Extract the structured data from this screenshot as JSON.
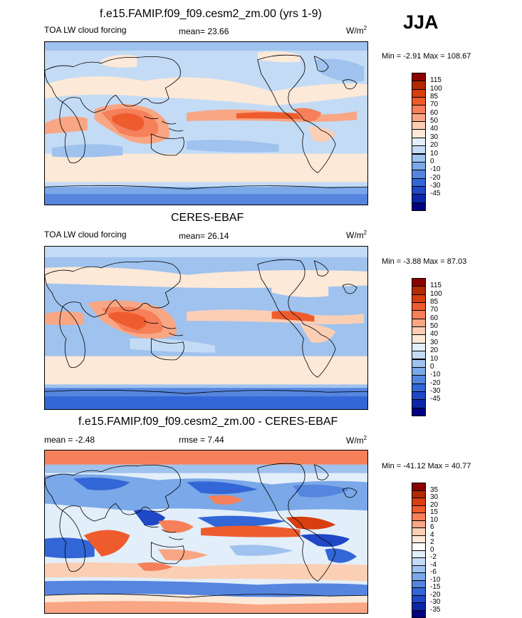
{
  "season": "JJA",
  "panels": [
    {
      "title": "f.e15.FAMIP.f09_f09.cesm2_zm.00 (yrs 1-9)",
      "left_label": "TOA LW cloud forcing",
      "center_label": "mean=  23.66",
      "units": "W/m",
      "units_sup": "2",
      "minmax": "Min =  -2.91 Max = 108.67",
      "colorbar": {
        "colors": [
          "#8b0000",
          "#b22a00",
          "#d73e10",
          "#ee5c2e",
          "#f5805a",
          "#f8a684",
          "#fbcfb4",
          "#fde9d8",
          "#e2eefa",
          "#c4dbf5",
          "#9fc2ee",
          "#7aa8e8",
          "#5585de",
          "#3366d6",
          "#1f47c6",
          "#0b27a8",
          "#000080"
        ],
        "ticks": [
          "115",
          "100",
          "85",
          "70",
          "60",
          "50",
          "40",
          "30",
          "20",
          "10",
          "0",
          "-10",
          "-20",
          "-30",
          "-45"
        ]
      }
    },
    {
      "title": "CERES-EBAF",
      "left_label": "TOA LW cloud forcing",
      "center_label": "mean=  26.14",
      "units": "W/m",
      "units_sup": "2",
      "minmax": "Min =  -3.88 Max =  87.03",
      "colorbar": {
        "colors": [
          "#8b0000",
          "#b22a00",
          "#d73e10",
          "#ee5c2e",
          "#f5805a",
          "#f8a684",
          "#fbcfb4",
          "#fde9d8",
          "#e2eefa",
          "#c4dbf5",
          "#9fc2ee",
          "#7aa8e8",
          "#5585de",
          "#3366d6",
          "#1f47c6",
          "#0b27a8",
          "#000080"
        ],
        "ticks": [
          "115",
          "100",
          "85",
          "70",
          "60",
          "50",
          "40",
          "30",
          "20",
          "10",
          "0",
          "-10",
          "-20",
          "-30",
          "-45"
        ]
      }
    },
    {
      "title": "f.e15.FAMIP.f09_f09.cesm2_zm.00 - CERES-EBAF",
      "left_label": "mean =  -2.48",
      "center_label": "rmse =   7.44",
      "units": "W/m",
      "units_sup": "2",
      "minmax": "Min = -41.12 Max =  40.77",
      "colorbar": {
        "colors": [
          "#8b0000",
          "#b22a00",
          "#d73e10",
          "#ee5c2e",
          "#f5805a",
          "#f8a684",
          "#fbcfb4",
          "#fde9d8",
          "#ffffff",
          "#e2eefa",
          "#c4dbf5",
          "#9fc2ee",
          "#7aa8e8",
          "#5585de",
          "#3366d6",
          "#1f47c6",
          "#0b27a8",
          "#000080"
        ],
        "ticks": [
          "35",
          "30",
          "20",
          "15",
          "10",
          "6",
          "4",
          "2",
          "0",
          "-2",
          "-4",
          "-6",
          "-10",
          "-15",
          "-20",
          "-30",
          "-35"
        ]
      }
    }
  ]
}
